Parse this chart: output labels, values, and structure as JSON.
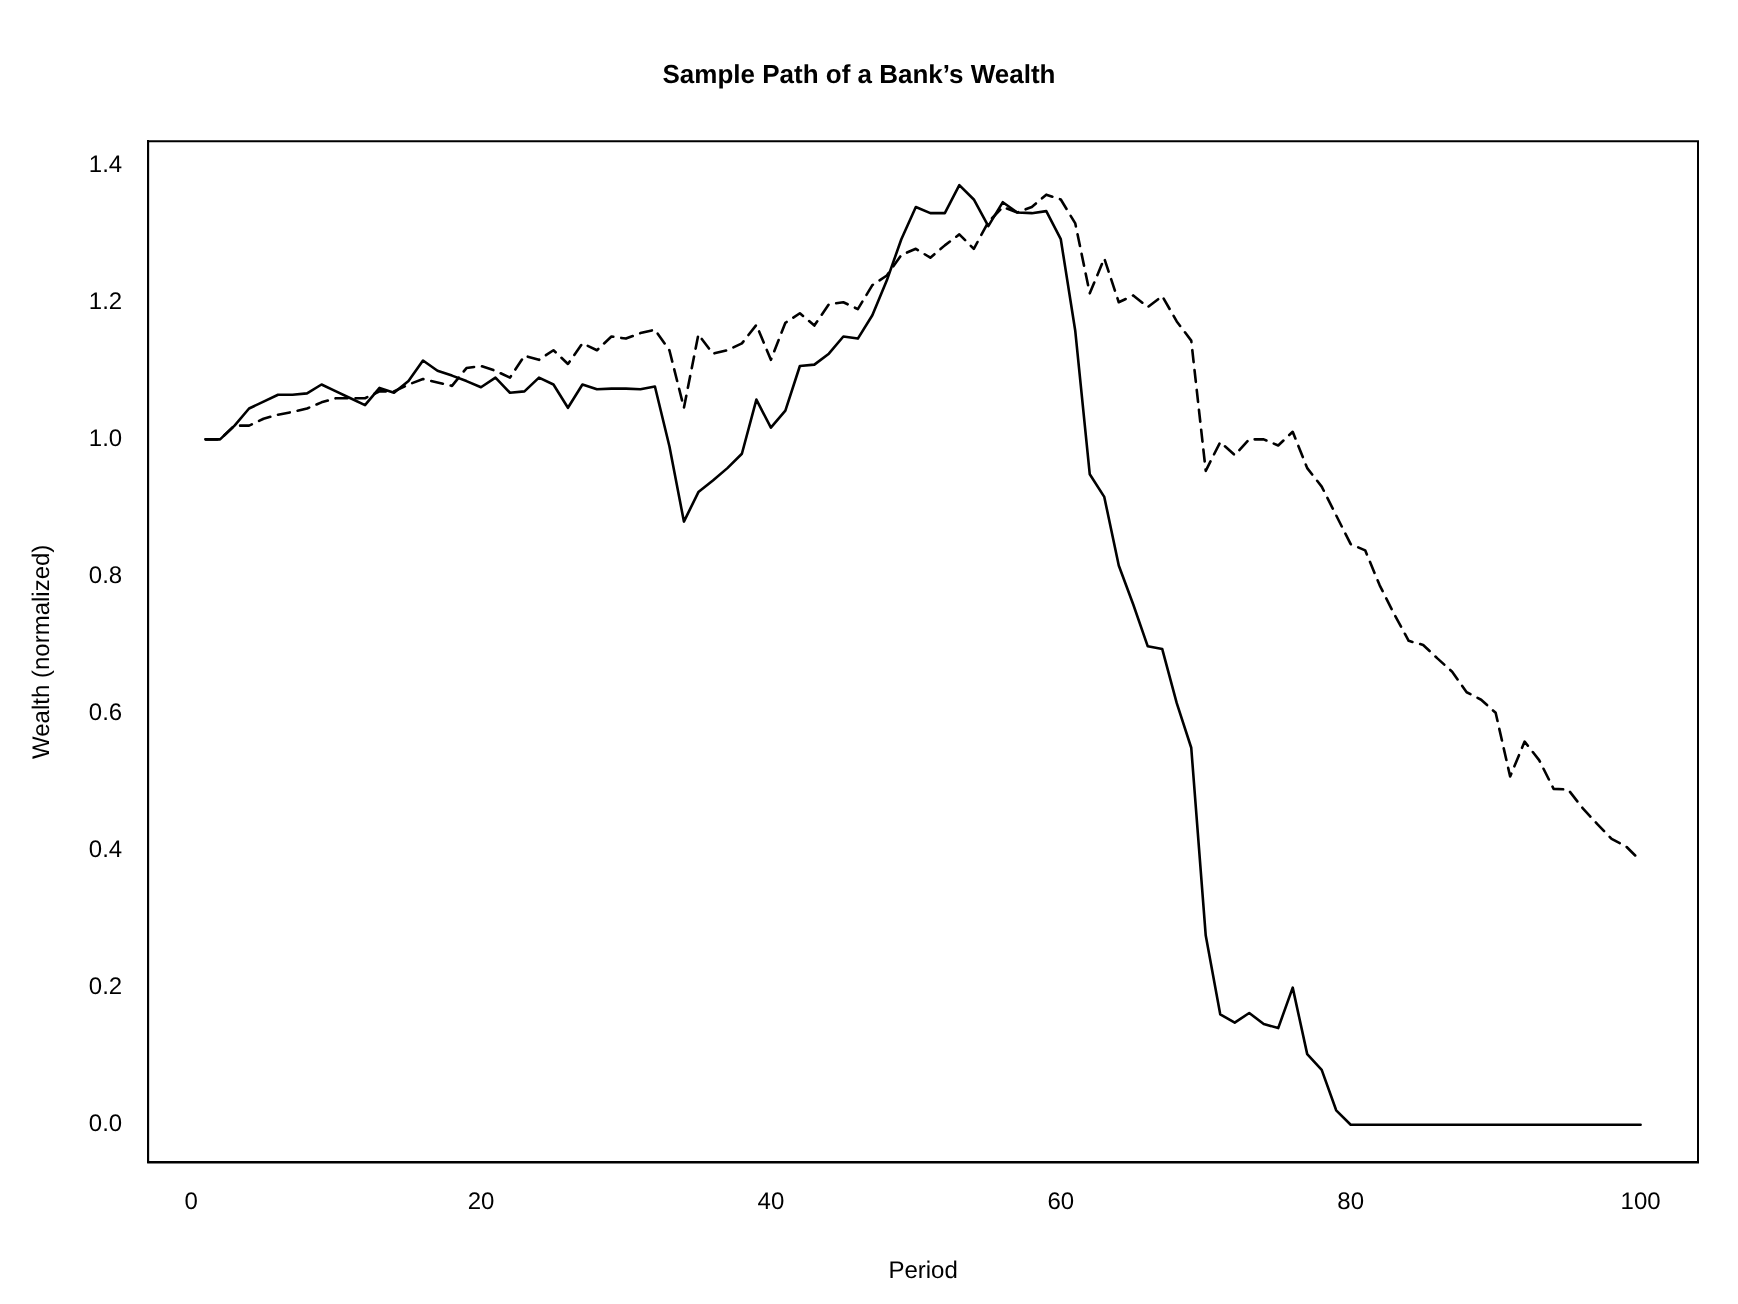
{
  "chart_data": {
    "type": "line",
    "title": "Sample Path of a Bank’s Wealth",
    "xlabel": "Period",
    "ylabel": "Wealth (normalized)",
    "x": [
      1,
      2,
      3,
      4,
      5,
      6,
      7,
      8,
      9,
      10,
      11,
      12,
      13,
      14,
      15,
      16,
      17,
      18,
      19,
      20,
      21,
      22,
      23,
      24,
      25,
      26,
      27,
      28,
      29,
      30,
      31,
      32,
      33,
      34,
      35,
      36,
      37,
      38,
      39,
      40,
      41,
      42,
      43,
      44,
      45,
      46,
      47,
      48,
      49,
      50,
      51,
      52,
      53,
      54,
      55,
      56,
      57,
      58,
      59,
      60,
      61,
      62,
      63,
      64,
      65,
      66,
      67,
      68,
      69,
      70,
      71,
      72,
      73,
      74,
      75,
      76,
      77,
      78,
      79,
      80,
      81,
      82,
      83,
      84,
      85,
      86,
      87,
      88,
      89,
      90,
      91,
      92,
      93,
      94,
      95,
      96,
      97,
      98,
      99,
      100
    ],
    "series": [
      {
        "color": "#000000",
        "line_style": "solid",
        "values": [
          1.0,
          1.0,
          1.02,
          1.045,
          1.055,
          1.065,
          1.065,
          1.067,
          1.08,
          1.07,
          1.06,
          1.05,
          1.075,
          1.068,
          1.085,
          1.115,
          1.1,
          1.093,
          1.085,
          1.076,
          1.09,
          1.068,
          1.07,
          1.09,
          1.08,
          1.046,
          1.08,
          1.073,
          1.074,
          1.074,
          1.073,
          1.077,
          0.99,
          0.88,
          0.923,
          0.94,
          0.958,
          0.979,
          1.058,
          1.017,
          1.042,
          1.107,
          1.109,
          1.125,
          1.15,
          1.147,
          1.181,
          1.232,
          1.292,
          1.339,
          1.33,
          1.33,
          1.371,
          1.35,
          1.311,
          1.346,
          1.331,
          1.33,
          1.333,
          1.292,
          1.158,
          0.949,
          0.916,
          0.816,
          0.759,
          0.698,
          0.694,
          0.615,
          0.55,
          0.276,
          0.161,
          0.149,
          0.163,
          0.147,
          0.141,
          0.2,
          0.103,
          0.08,
          0.021,
          0,
          0,
          0,
          0,
          0,
          0,
          0,
          0,
          0,
          0,
          0,
          0,
          0,
          0,
          0,
          0,
          0,
          0,
          0,
          0,
          0
        ]
      },
      {
        "color": "#000000",
        "line_style": "dashed",
        "values": [
          1.0,
          1.0,
          1.02,
          1.02,
          1.03,
          1.036,
          1.04,
          1.045,
          1.054,
          1.06,
          1.06,
          1.06,
          1.07,
          1.07,
          1.08,
          1.088,
          1.083,
          1.078,
          1.104,
          1.107,
          1.1,
          1.09,
          1.122,
          1.116,
          1.13,
          1.11,
          1.14,
          1.13,
          1.15,
          1.147,
          1.155,
          1.16,
          1.13,
          1.046,
          1.153,
          1.125,
          1.13,
          1.14,
          1.167,
          1.116,
          1.17,
          1.184,
          1.166,
          1.197,
          1.2,
          1.19,
          1.225,
          1.239,
          1.269,
          1.278,
          1.265,
          1.283,
          1.299,
          1.278,
          1.317,
          1.339,
          1.331,
          1.339,
          1.357,
          1.35,
          1.315,
          1.213,
          1.264,
          1.2,
          1.21,
          1.193,
          1.209,
          1.172,
          1.144,
          0.954,
          0.996,
          0.977,
          1.0,
          1.0,
          0.991,
          1.011,
          0.958,
          0.931,
          0.889,
          0.847,
          0.838,
          0.787,
          0.745,
          0.706,
          0.7,
          0.68,
          0.661,
          0.631,
          0.62,
          0.601,
          0.508,
          0.559,
          0.532,
          0.49,
          0.489,
          0.462,
          0.439,
          0.417,
          0.406,
          0.385
        ]
      }
    ],
    "xlim": [
      -2.96,
      103.96
    ],
    "xticks": [
      0,
      20,
      40,
      60,
      80,
      100
    ],
    "ylim": [
      -0.055,
      1.435
    ],
    "yticks": [
      {
        "value": 0,
        "label": "0.0"
      },
      {
        "value": 0.2,
        "label": "0.2"
      },
      {
        "value": 0.4,
        "label": "0.4"
      },
      {
        "value": 0.6,
        "label": "0.6"
      },
      {
        "value": 0.8,
        "label": "0.8"
      },
      {
        "value": 1,
        "label": "1.0"
      },
      {
        "value": 1.2,
        "label": "1.2"
      },
      {
        "value": 1.4,
        "label": "1.4"
      }
    ],
    "grid": false,
    "legend": false,
    "marker": "none"
  }
}
